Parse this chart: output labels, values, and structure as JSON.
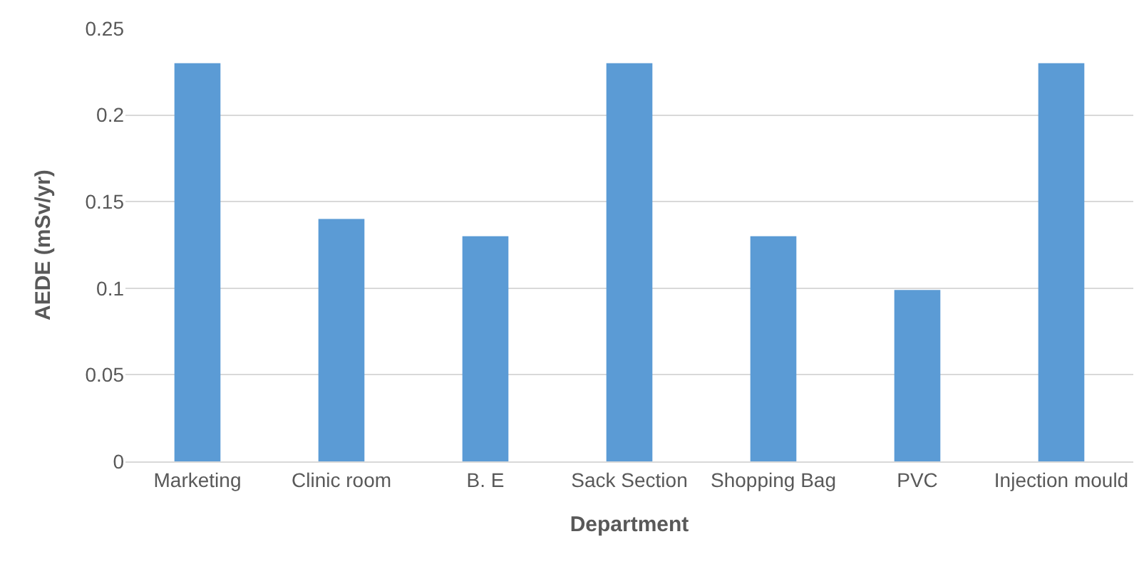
{
  "chart_data": {
    "type": "bar",
    "xlabel": "Department",
    "ylabel": "AEDE (mSv/yr)",
    "categories": [
      "Marketing",
      "Clinic room",
      "B. E",
      "Sack Section",
      "Shopping Bag",
      "PVC",
      "Injection mould"
    ],
    "values": [
      0.23,
      0.14,
      0.13,
      0.23,
      0.13,
      0.099,
      0.23
    ],
    "color": "#5b9bd5",
    "ylim": [
      0,
      0.25
    ],
    "yticks": [
      0,
      0.05,
      0.1,
      0.15,
      0.2,
      0.25
    ],
    "grid": "y",
    "legend": false
  }
}
